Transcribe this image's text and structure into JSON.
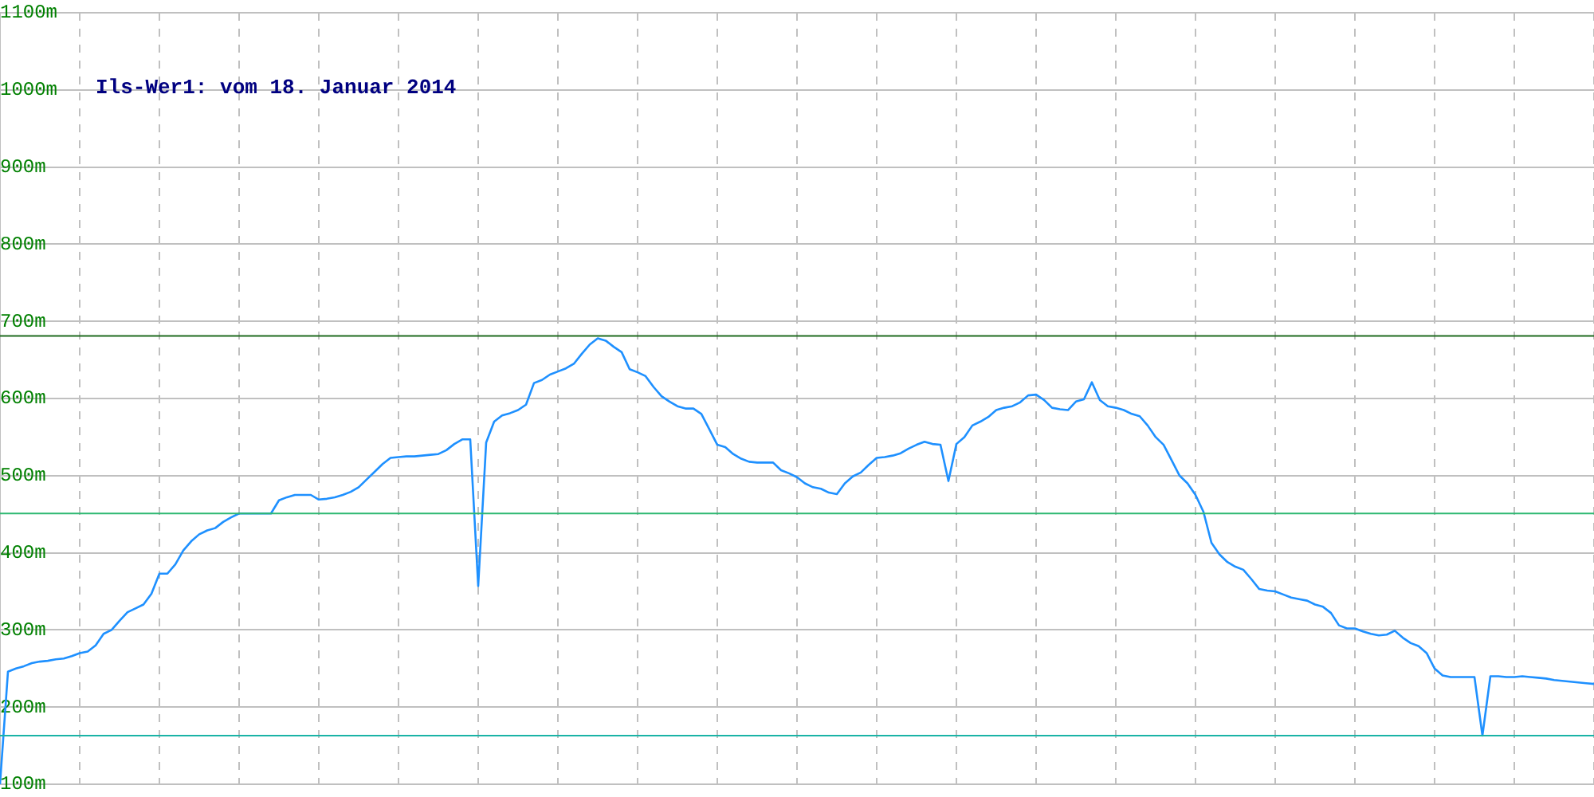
{
  "chart_data": {
    "type": "line",
    "title": "Ils-Wer1: vom 18. Januar 2014",
    "categories": [
      null,
      null,
      null,
      null,
      null,
      null,
      null,
      null,
      null,
      null,
      null,
      null,
      null,
      null,
      null,
      null,
      null,
      null,
      null,
      null,
      null,
      null,
      null,
      null,
      null,
      null,
      null,
      null,
      null,
      null,
      null,
      null,
      null,
      null,
      null,
      null,
      null,
      null,
      null,
      null,
      null,
      null,
      null,
      null,
      null,
      null,
      null,
      null,
      null,
      null,
      null,
      null,
      null,
      null,
      null,
      null,
      null,
      null,
      null,
      null,
      null,
      null,
      null,
      null,
      null,
      null,
      null,
      null,
      null,
      null,
      null,
      null,
      null,
      null,
      null,
      null,
      null,
      null,
      null,
      null,
      null,
      null,
      null,
      null,
      null,
      null,
      null,
      null,
      null,
      null,
      null,
      null,
      null,
      null,
      null,
      null,
      null,
      null,
      null,
      null,
      null,
      null,
      null,
      null,
      null,
      null,
      null,
      null,
      null,
      null,
      null,
      null,
      null,
      null,
      null,
      null,
      null,
      null,
      null,
      null,
      null,
      null,
      null,
      null,
      null,
      null,
      null,
      null,
      null,
      null,
      null,
      null,
      null,
      null,
      null,
      null,
      null,
      null,
      null,
      null,
      null,
      null,
      null,
      null,
      null,
      null,
      null,
      null,
      null,
      null,
      null,
      null,
      null,
      null,
      null,
      null,
      null,
      null,
      null,
      null,
      null,
      null,
      null,
      null,
      null,
      null,
      null,
      null,
      null,
      null,
      null,
      null,
      null,
      null,
      null,
      null,
      null,
      null,
      null,
      null,
      null,
      null,
      null,
      null,
      null,
      null,
      null,
      null,
      null,
      null,
      null,
      null,
      null,
      null,
      null,
      null,
      null,
      null,
      null,
      null,
      null
    ],
    "series": [
      {
        "color": "#1e90ff",
        "values": [
          100,
          246,
          250,
          253,
          257,
          259,
          260,
          262,
          263,
          266,
          270,
          272,
          280,
          295,
          300,
          312,
          323,
          328,
          333,
          347,
          373,
          373,
          385,
          403,
          415,
          424,
          429,
          432,
          440,
          446,
          451,
          451,
          451,
          451,
          451,
          468,
          472,
          475,
          475,
          475,
          469,
          470,
          472,
          475,
          479,
          485,
          495,
          505,
          515,
          523,
          524,
          525,
          525,
          526,
          527,
          528,
          533,
          541,
          547,
          547,
          357,
          543,
          570,
          578,
          581,
          585,
          592,
          620,
          624,
          631,
          635,
          639,
          645,
          658,
          670,
          678,
          675,
          667,
          660,
          638,
          634,
          629,
          615,
          603,
          596,
          590,
          587,
          587,
          580,
          560,
          540,
          537,
          528,
          522,
          518,
          517,
          517,
          517,
          507,
          503,
          498,
          490,
          485,
          483,
          478,
          476,
          490,
          499,
          504,
          514,
          523,
          524,
          526,
          529,
          535,
          540,
          544,
          541,
          540,
          493,
          541,
          550,
          565,
          570,
          576,
          585,
          588,
          590,
          595,
          604,
          605,
          598,
          588,
          586,
          585,
          596,
          599,
          621,
          598,
          590,
          588,
          585,
          580,
          577,
          565,
          550,
          540,
          520,
          500,
          490,
          475,
          453,
          413,
          398,
          388,
          382,
          378,
          366,
          353,
          351,
          350,
          346,
          342,
          340,
          338,
          333,
          330,
          322,
          306,
          302,
          302,
          298,
          295,
          293,
          294,
          299,
          290,
          283,
          279,
          270,
          250,
          241,
          239,
          239,
          239,
          239,
          163,
          240,
          240,
          239,
          239,
          240,
          239,
          238,
          237,
          235,
          234,
          233,
          232,
          231,
          230
        ]
      }
    ],
    "ylim": [
      100,
      1100
    ],
    "yticks": [
      {
        "value": 100,
        "label": "100m"
      },
      {
        "value": 200,
        "label": "200m"
      },
      {
        "value": 300,
        "label": "300m"
      },
      {
        "value": 400,
        "label": "400m"
      },
      {
        "value": 500,
        "label": "500m"
      },
      {
        "value": 600,
        "label": "600m"
      },
      {
        "value": 700,
        "label": "700m"
      },
      {
        "value": 800,
        "label": "800m"
      },
      {
        "value": 900,
        "label": "900m"
      },
      {
        "value": 1000,
        "label": "1000m"
      },
      {
        "value": 1100,
        "label": "1100m"
      }
    ],
    "ref_lines": [
      {
        "axis": "y",
        "value": 681,
        "color": "#1f6b1f"
      },
      {
        "axis": "y",
        "value": 451,
        "color": "#2eb872"
      },
      {
        "axis": "y",
        "value": 163,
        "color": "#1ab3a6"
      }
    ],
    "grid": true,
    "legend": false,
    "marker": "none",
    "line_style": "solid",
    "tick_labels": "y"
  }
}
